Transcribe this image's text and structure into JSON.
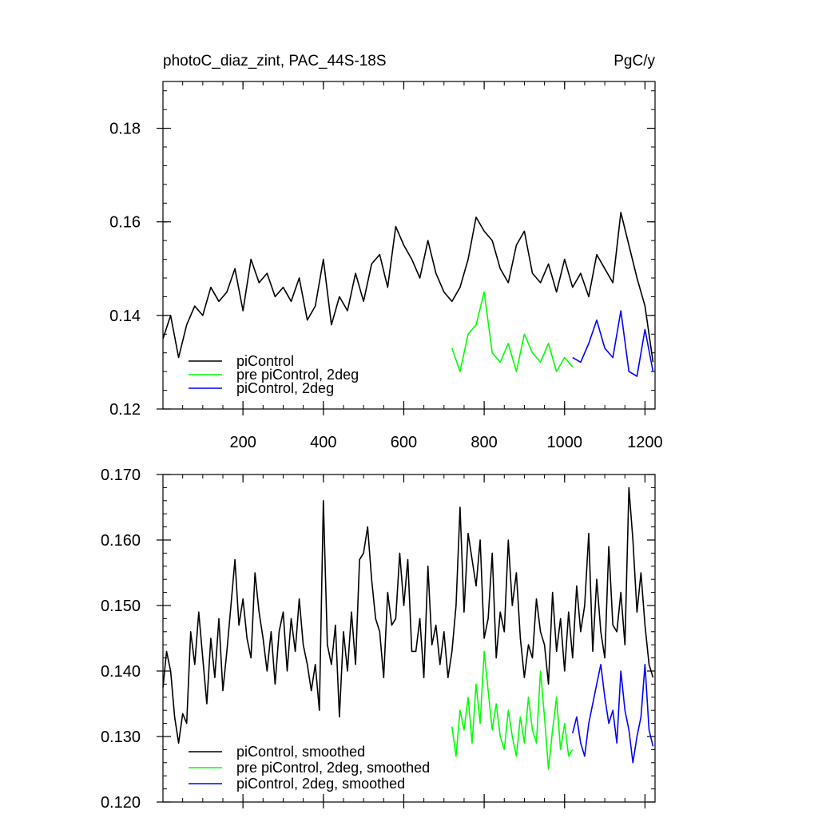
{
  "chart_data": [
    {
      "type": "line",
      "title_left": "photoC_diaz_zint, PAC_44S-18S",
      "title_right": "PgC/y",
      "xlabel": "",
      "ylabel": "",
      "xlim": [
        1,
        1225
      ],
      "ylim": [
        0.12,
        0.19
      ],
      "x_ticks": [
        200,
        400,
        600,
        800,
        1000,
        1200
      ],
      "y_ticks": [
        0.12,
        0.14,
        0.16,
        0.18
      ],
      "y_tick_labels": [
        "0.12",
        "0.14",
        "0.16",
        "0.18"
      ],
      "x_tick_labels": [
        "200",
        "400",
        "600",
        "800",
        "1000",
        "1200"
      ],
      "legend_position": "lower-left",
      "series": [
        {
          "name": "piControl",
          "color": "#000000",
          "x": [
            1,
            20,
            40,
            60,
            80,
            100,
            120,
            140,
            160,
            180,
            200,
            220,
            240,
            260,
            280,
            300,
            320,
            340,
            360,
            380,
            400,
            420,
            440,
            460,
            480,
            500,
            520,
            540,
            560,
            580,
            600,
            620,
            640,
            660,
            680,
            700,
            720,
            740,
            760,
            780,
            800,
            820,
            840,
            860,
            880,
            900,
            920,
            940,
            960,
            980,
            1000,
            1020,
            1040,
            1060,
            1080,
            1100,
            1120,
            1140,
            1160,
            1180,
            1200,
            1220
          ],
          "values": [
            0.135,
            0.14,
            0.131,
            0.138,
            0.142,
            0.14,
            0.146,
            0.143,
            0.145,
            0.15,
            0.141,
            0.152,
            0.147,
            0.149,
            0.144,
            0.146,
            0.143,
            0.148,
            0.139,
            0.142,
            0.152,
            0.138,
            0.144,
            0.141,
            0.149,
            0.143,
            0.151,
            0.153,
            0.146,
            0.159,
            0.155,
            0.152,
            0.148,
            0.156,
            0.149,
            0.145,
            0.143,
            0.146,
            0.152,
            0.161,
            0.158,
            0.156,
            0.15,
            0.147,
            0.155,
            0.158,
            0.149,
            0.147,
            0.151,
            0.145,
            0.152,
            0.146,
            0.149,
            0.144,
            0.153,
            0.15,
            0.147,
            0.162,
            0.155,
            0.148,
            0.142,
            0.13
          ]
        },
        {
          "name": "pre piControl, 2deg",
          "color": "#00ff00",
          "x": [
            720,
            740,
            760,
            780,
            800,
            820,
            840,
            860,
            880,
            900,
            920,
            940,
            960,
            980,
            1000,
            1020
          ],
          "values": [
            0.133,
            0.128,
            0.136,
            0.138,
            0.145,
            0.132,
            0.13,
            0.134,
            0.128,
            0.136,
            0.132,
            0.13,
            0.134,
            0.128,
            0.131,
            0.129
          ]
        },
        {
          "name": "piControl, 2deg",
          "color": "#0000ff",
          "x": [
            1020,
            1040,
            1060,
            1080,
            1100,
            1120,
            1140,
            1160,
            1180,
            1200,
            1220
          ],
          "values": [
            0.131,
            0.13,
            0.134,
            0.139,
            0.133,
            0.131,
            0.141,
            0.128,
            0.127,
            0.137,
            0.128
          ]
        }
      ]
    },
    {
      "type": "line",
      "xlabel": "",
      "ylabel": "",
      "xlim": [
        1,
        1225
      ],
      "ylim": [
        0.12,
        0.17
      ],
      "x_ticks": [
        200,
        400,
        600,
        800,
        1000,
        1200
      ],
      "y_ticks": [
        0.12,
        0.13,
        0.14,
        0.15,
        0.16,
        0.17
      ],
      "y_tick_labels": [
        "0.120",
        "0.130",
        "0.140",
        "0.150",
        "0.160",
        "0.170"
      ],
      "legend_position": "lower-left",
      "series": [
        {
          "name": "piControl, smoothed",
          "color": "#000000",
          "x": [
            1,
            10,
            20,
            30,
            40,
            50,
            60,
            70,
            80,
            90,
            100,
            110,
            120,
            130,
            140,
            150,
            160,
            170,
            180,
            190,
            200,
            210,
            220,
            230,
            240,
            250,
            260,
            270,
            280,
            290,
            300,
            310,
            320,
            330,
            340,
            350,
            360,
            370,
            380,
            390,
            400,
            410,
            420,
            430,
            440,
            450,
            460,
            470,
            480,
            490,
            500,
            510,
            520,
            530,
            540,
            550,
            560,
            570,
            580,
            590,
            600,
            610,
            620,
            630,
            640,
            650,
            660,
            670,
            680,
            690,
            700,
            710,
            720,
            730,
            740,
            750,
            760,
            770,
            780,
            790,
            800,
            810,
            820,
            830,
            840,
            850,
            860,
            870,
            880,
            890,
            900,
            910,
            920,
            930,
            940,
            950,
            960,
            970,
            980,
            990,
            1000,
            1010,
            1020,
            1030,
            1040,
            1050,
            1060,
            1070,
            1080,
            1090,
            1100,
            1110,
            1120,
            1130,
            1140,
            1150,
            1160,
            1170,
            1180,
            1190,
            1200,
            1210,
            1220
          ],
          "values": [
            0.1375,
            0.143,
            0.14,
            0.133,
            0.129,
            0.1335,
            0.132,
            0.146,
            0.141,
            0.149,
            0.142,
            0.135,
            0.145,
            0.139,
            0.148,
            0.137,
            0.143,
            0.15,
            0.157,
            0.147,
            0.151,
            0.145,
            0.142,
            0.155,
            0.149,
            0.145,
            0.14,
            0.146,
            0.138,
            0.146,
            0.149,
            0.14,
            0.148,
            0.143,
            0.151,
            0.144,
            0.141,
            0.137,
            0.141,
            0.134,
            0.166,
            0.144,
            0.141,
            0.147,
            0.133,
            0.146,
            0.14,
            0.149,
            0.141,
            0.157,
            0.158,
            0.162,
            0.154,
            0.148,
            0.146,
            0.139,
            0.152,
            0.147,
            0.148,
            0.158,
            0.15,
            0.157,
            0.143,
            0.143,
            0.148,
            0.139,
            0.156,
            0.144,
            0.147,
            0.141,
            0.146,
            0.139,
            0.143,
            0.15,
            0.165,
            0.149,
            0.161,
            0.157,
            0.153,
            0.16,
            0.145,
            0.148,
            0.158,
            0.142,
            0.149,
            0.146,
            0.16,
            0.15,
            0.155,
            0.145,
            0.139,
            0.144,
            0.142,
            0.151,
            0.146,
            0.144,
            0.138,
            0.152,
            0.143,
            0.148,
            0.14,
            0.149,
            0.142,
            0.153,
            0.146,
            0.15,
            0.161,
            0.143,
            0.154,
            0.146,
            0.142,
            0.159,
            0.147,
            0.146,
            0.152,
            0.144,
            0.168,
            0.16,
            0.149,
            0.155,
            0.147,
            0.141,
            0.139
          ]
        },
        {
          "name": "pre piControl, 2deg, smoothed",
          "color": "#00ff00",
          "x": [
            720,
            730,
            740,
            750,
            760,
            770,
            780,
            790,
            800,
            810,
            820,
            830,
            840,
            850,
            860,
            870,
            880,
            890,
            900,
            910,
            920,
            930,
            940,
            950,
            960,
            970,
            980,
            990,
            1000,
            1010,
            1020
          ],
          "values": [
            0.1315,
            0.127,
            0.134,
            0.131,
            0.136,
            0.129,
            0.138,
            0.132,
            0.143,
            0.137,
            0.131,
            0.135,
            0.13,
            0.128,
            0.134,
            0.13,
            0.127,
            0.133,
            0.129,
            0.136,
            0.131,
            0.129,
            0.14,
            0.133,
            0.125,
            0.131,
            0.136,
            0.128,
            0.132,
            0.127,
            0.128
          ]
        },
        {
          "name": "piControl, 2deg, smoothed",
          "color": "#0000ff",
          "x": [
            1020,
            1030,
            1040,
            1050,
            1060,
            1070,
            1080,
            1090,
            1100,
            1110,
            1120,
            1130,
            1140,
            1150,
            1160,
            1170,
            1180,
            1190,
            1200,
            1210,
            1220
          ],
          "values": [
            0.1305,
            0.133,
            0.129,
            0.127,
            0.132,
            0.135,
            0.138,
            0.141,
            0.136,
            0.132,
            0.134,
            0.129,
            0.14,
            0.134,
            0.131,
            0.126,
            0.13,
            0.133,
            0.141,
            0.131,
            0.1285
          ]
        }
      ]
    }
  ]
}
